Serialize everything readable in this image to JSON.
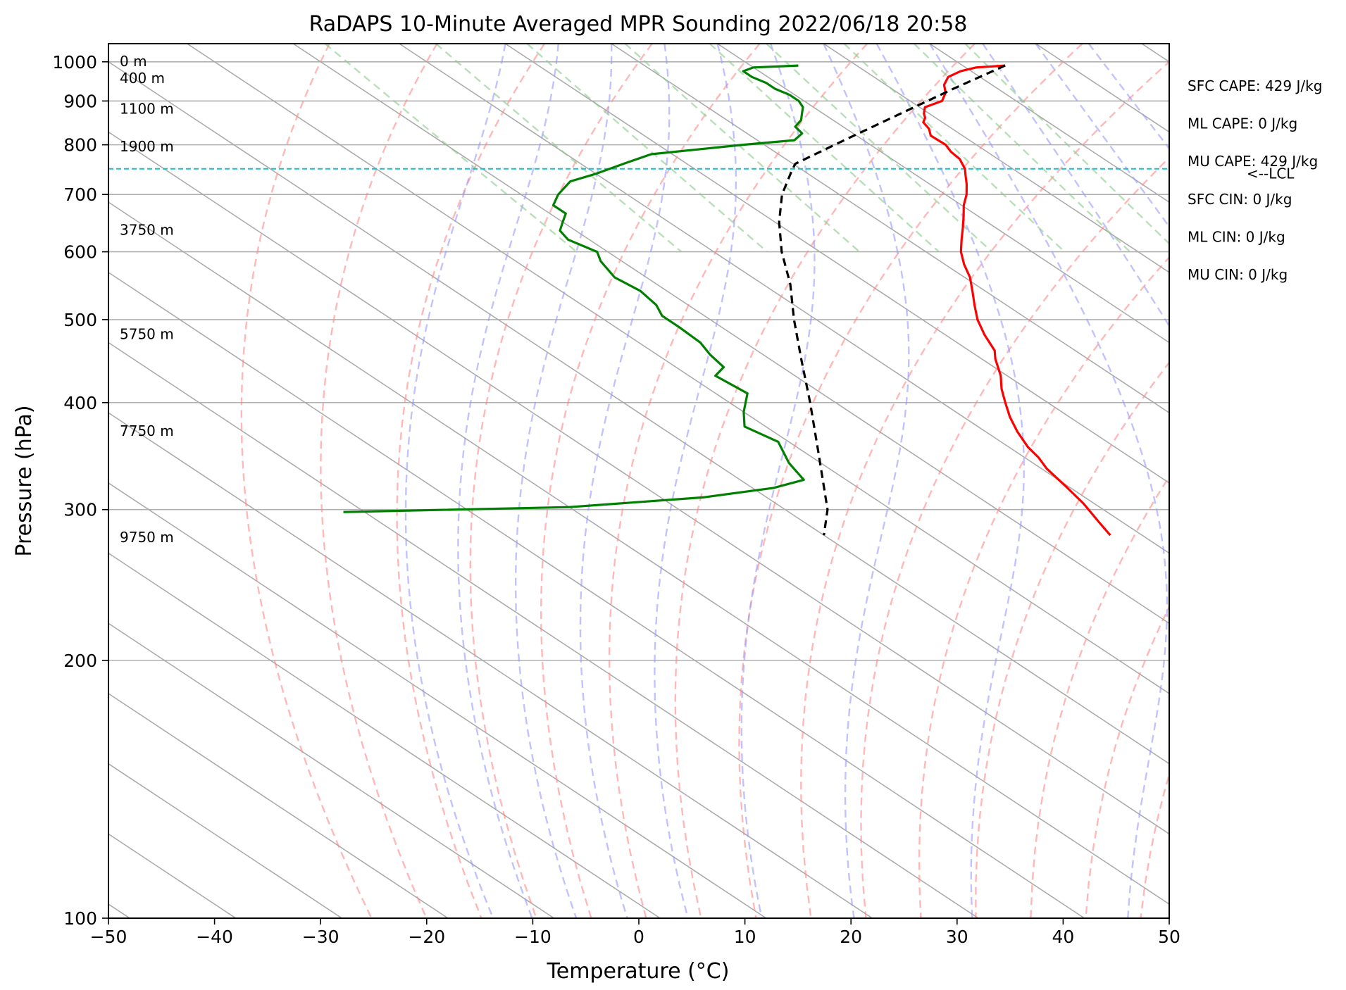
{
  "chart_data": {
    "type": "line",
    "title": "RaDAPS 10-Minute Averaged MPR Sounding 2022/06/18 20:58",
    "xlabel": "Temperature (°C)",
    "ylabel": "Pressure (hPa)",
    "xlim": [
      -50,
      50
    ],
    "ylim": [
      1050,
      100
    ],
    "yscale": "log",
    "grid": true,
    "x_ticks": [
      -50,
      -40,
      -30,
      -20,
      -10,
      0,
      10,
      20,
      30,
      40,
      50
    ],
    "x_tick_labels": [
      "−50",
      "−40",
      "−30",
      "−20",
      "−10",
      "0",
      "10",
      "20",
      "30",
      "40",
      "50"
    ],
    "y_ticks": [
      1000,
      900,
      800,
      700,
      600,
      500,
      400,
      300,
      200,
      100
    ],
    "y_tick_labels": [
      "1000",
      "900",
      "800",
      "700",
      "600",
      "500",
      "400",
      "300",
      "200",
      "100"
    ],
    "skew_deg_per_decade": 122,
    "series": [
      {
        "color": "#ff0000",
        "pressure": [
          990,
          985,
          975,
          960,
          940,
          920,
          900,
          885,
          870,
          860,
          850,
          835,
          820,
          800,
          785,
          770,
          750,
          735,
          720,
          700,
          680,
          660,
          640,
          620,
          600,
          580,
          560,
          540,
          520,
          500,
          480,
          460,
          450,
          430,
          415,
          400,
          385,
          370,
          355,
          345,
          335,
          320,
          305,
          290,
          280
        ],
        "values": [
          34,
          31,
          29,
          27,
          25.5,
          24.5,
          23,
          20.5,
          19.5,
          19,
          18.2,
          17.8,
          17,
          17.1,
          16.6,
          16.4,
          15.5,
          14.5,
          13.5,
          12,
          10.2,
          8.6,
          6.9,
          5.1,
          3.3,
          1.8,
          0.5,
          -1.2,
          -3,
          -4.8,
          -6.3,
          -7.6,
          -8.7,
          -10.6,
          -12.4,
          -14,
          -15.6,
          -17,
          -18.2,
          -18.7,
          -19.5,
          -20.2,
          -21,
          -22.2,
          -23
        ]
      },
      {
        "color": "#008000",
        "pressure": [
          990,
          985,
          975,
          960,
          945,
          930,
          915,
          900,
          885,
          870,
          855,
          840,
          825,
          810,
          800,
          790,
          780,
          760,
          740,
          725,
          700,
          680,
          665,
          650,
          635,
          620,
          600,
          585,
          560,
          540,
          520,
          505,
          490,
          470,
          455,
          440,
          430,
          410,
          390,
          375,
          360,
          340,
          325,
          318,
          310,
          302,
          298
        ],
        "values": [
          14.5,
          10,
          8.5,
          8.5,
          9,
          9,
          9.5,
          9.5,
          9,
          8,
          7,
          5.5,
          5.2,
          3.5,
          -2,
          -7,
          -12,
          -16,
          -20,
          -23.5,
          -26.5,
          -28.5,
          -28.5,
          -30,
          -31.5,
          -32,
          -31,
          -32,
          -33,
          -32.5,
          -33,
          -34,
          -34,
          -34.2,
          -35,
          -35.5,
          -37.5,
          -37,
          -40,
          -42,
          -41,
          -43,
          -44,
          -48,
          -56,
          -70,
          -92
        ]
      },
      {
        "color": "#000000",
        "dashed": true,
        "pressure": [
          990,
          930,
          870,
          810,
          760,
          745,
          700,
          650,
          600,
          550,
          500,
          450,
          400,
          350,
          300,
          280
        ],
        "values": [
          34,
          25.8,
          17.3,
          8.2,
          0.2,
          -1.2,
          -5.4,
          -9.6,
          -13.6,
          -17.4,
          -22.1,
          -27,
          -32.4,
          -38.7,
          -46,
          -50
        ]
      }
    ],
    "height_labels": [
      {
        "text": "0 m",
        "pressure": 1000
      },
      {
        "text": "400 m",
        "pressure": 955
      },
      {
        "text": "1100 m",
        "pressure": 880
      },
      {
        "text": "1900 m",
        "pressure": 795
      },
      {
        "text": "3750 m",
        "pressure": 635
      },
      {
        "text": "5750 m",
        "pressure": 480
      },
      {
        "text": "7750 m",
        "pressure": 370
      },
      {
        "text": "9750 m",
        "pressure": 278
      }
    ],
    "lcl": {
      "pressure": 750,
      "label": "<--LCL",
      "color": "#17becf"
    },
    "indices": [
      "SFC CAPE: 429 J/kg",
      "ML CAPE: 0 J/kg",
      "MU CAPE: 429 J/kg",
      "SFC CIN: 0 J/kg",
      "ML CIN: 0 J/kg",
      "MU CIN: 0 J/kg"
    ],
    "dry_adiabat_color": "#ff8888",
    "moist_adiabat_color": "#9999ff",
    "mixing_ratio_color": "#88cc88"
  }
}
